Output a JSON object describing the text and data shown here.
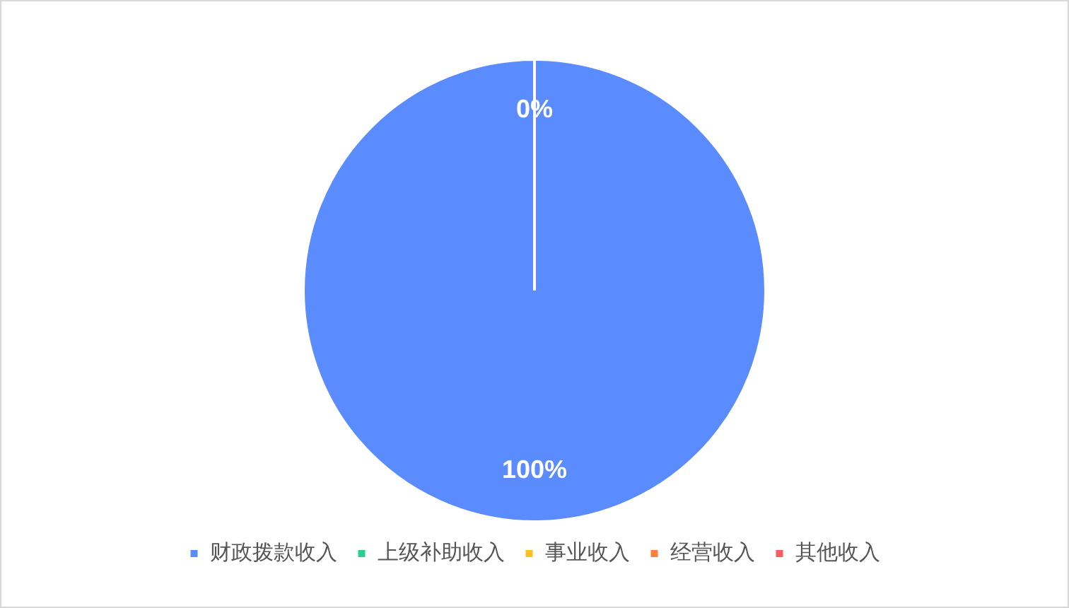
{
  "chart_data": {
    "type": "pie",
    "categories": [
      "财政拨款收入",
      "上级补助收入",
      "事业收入",
      "经营收入",
      "其他收入"
    ],
    "values": [
      100,
      0,
      0,
      0,
      0
    ],
    "colors": [
      "#5b8cff",
      "#2ecc8f",
      "#fbc21e",
      "#ff7f3e",
      "#f85e5e"
    ],
    "value_labels": [
      "100%",
      "0%",
      null,
      null,
      null
    ],
    "legend": "bottom"
  }
}
